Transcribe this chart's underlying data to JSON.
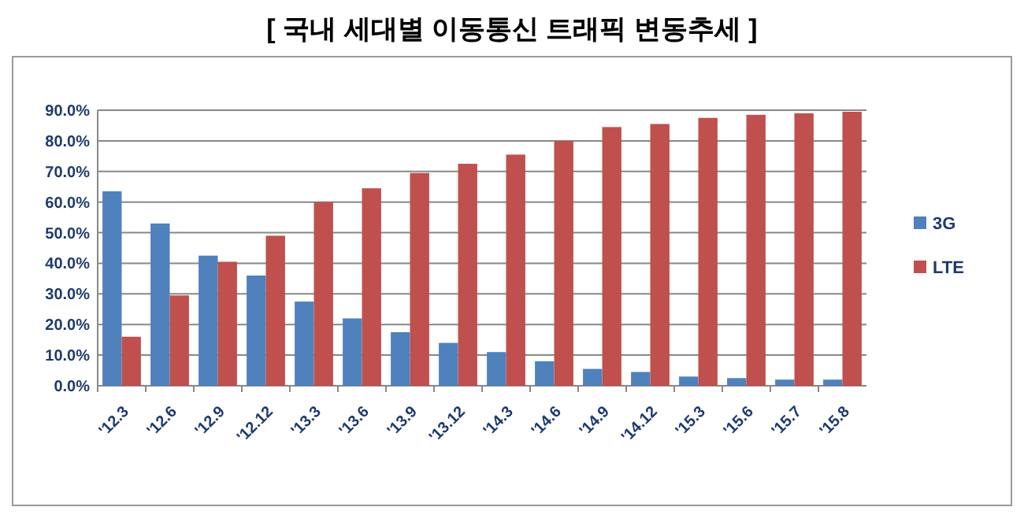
{
  "chart_data": {
    "type": "bar",
    "title": "[ 국내 세대별 이동통신 트래픽 변동추세 ]",
    "categories": [
      "'12.3",
      "'12.6",
      "'12.9",
      "'12.12",
      "'13.3",
      "'13.6",
      "'13.9",
      "'13.12",
      "'14.3",
      "'14.6",
      "'14.9",
      "'14.12",
      "'15.3",
      "'15.6",
      "'15.7",
      "'15.8"
    ],
    "series": [
      {
        "name": "3G",
        "color": "#4f81bd",
        "values": [
          63.5,
          53,
          42.5,
          36,
          27.5,
          22,
          17.5,
          14,
          11,
          8,
          5.5,
          4.5,
          3,
          2.5,
          2,
          2
        ]
      },
      {
        "name": "LTE",
        "color": "#c0504d",
        "values": [
          16,
          29.5,
          40.5,
          49,
          60,
          64.5,
          69.5,
          72.5,
          75.5,
          80,
          84.5,
          85.5,
          87.5,
          88.5,
          89,
          89.5
        ]
      }
    ],
    "ylim": [
      0,
      90
    ],
    "yticks": [
      {
        "value": 0,
        "label": "0.0%"
      },
      {
        "value": 10,
        "label": "10.0%"
      },
      {
        "value": 20,
        "label": "20.0%"
      },
      {
        "value": 30,
        "label": "30.0%"
      },
      {
        "value": 40,
        "label": "40.0%"
      },
      {
        "value": 50,
        "label": "50.0%"
      },
      {
        "value": 60,
        "label": "60.0%"
      },
      {
        "value": 70,
        "label": "70.0%"
      },
      {
        "value": 80,
        "label": "80.0%"
      },
      {
        "value": 90,
        "label": "90.0%"
      }
    ],
    "grid": true,
    "legend": "right"
  }
}
